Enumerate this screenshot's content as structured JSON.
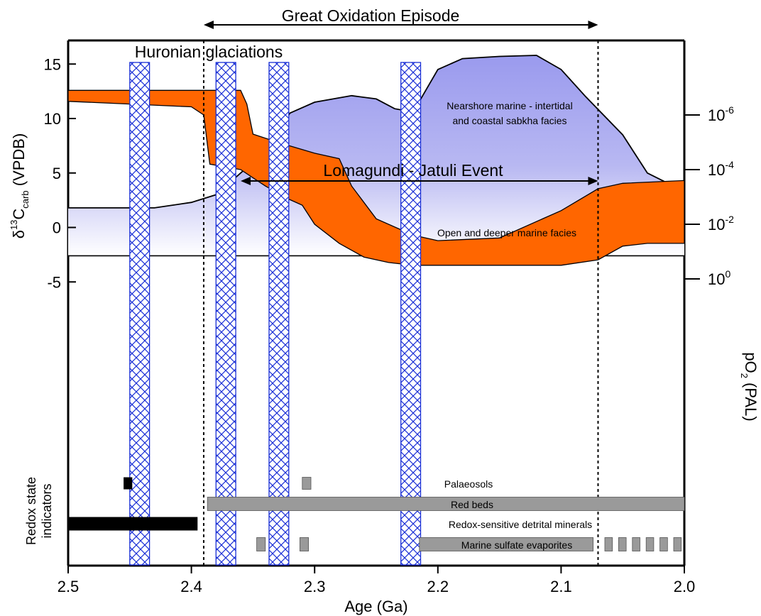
{
  "chart_data": {
    "type": "area",
    "x_axis": {
      "label": "Age (Ga)",
      "range": [
        2.5,
        2.0
      ],
      "reversed": true,
      "ticks": [
        2.5,
        2.4,
        2.3,
        2.2,
        2.1,
        2.0
      ],
      "tick_labels": [
        "2.5",
        "2.4",
        "2.3",
        "2.2",
        "2.1",
        "2.0"
      ]
    },
    "y_axis_left": {
      "label_main": "δ",
      "label_sup": "13",
      "label_c": "C",
      "label_sub": "carb",
      "label_tail": " (VPDB)",
      "range": [
        -7,
        17
      ],
      "ticks": [
        15,
        10,
        5,
        0,
        -5
      ],
      "tick_labels": [
        "15",
        "10",
        "5",
        "0",
        "-5"
      ]
    },
    "y_axis_right": {
      "label_main": "pO",
      "label_sub": "2",
      "label_tail": " (PAL)",
      "scale": "log",
      "tick_bases": [
        "10",
        "10",
        "10",
        "10"
      ],
      "tick_exponents": [
        "0",
        "-2",
        "-4",
        "-6"
      ],
      "tick_values_log10": [
        0,
        -2,
        -4,
        -6
      ]
    },
    "title": "Great Oxidation Episode",
    "goe_interval": [
      2.39,
      2.07
    ],
    "lomagundi": {
      "label": "Lomagundi - Jatuli Event",
      "interval": [
        2.36,
        2.07
      ]
    },
    "huronian": {
      "label": "Huronian glaciations",
      "bars": [
        [
          2.45,
          2.434
        ],
        [
          2.38,
          2.364
        ],
        [
          2.337,
          2.321
        ],
        [
          2.23,
          2.214
        ]
      ]
    },
    "carbon_isotope_upper_envelope": [
      [
        2.5,
        1.8
      ],
      [
        2.45,
        1.8
      ],
      [
        2.43,
        1.8
      ],
      [
        2.4,
        2.3
      ],
      [
        2.38,
        3.0
      ],
      [
        2.34,
        7.0
      ],
      [
        2.32,
        10.5
      ],
      [
        2.3,
        11.5
      ],
      [
        2.27,
        12.1
      ],
      [
        2.25,
        11.8
      ],
      [
        2.235,
        10.9
      ],
      [
        2.22,
        10.6
      ],
      [
        2.2,
        14.5
      ],
      [
        2.18,
        15.5
      ],
      [
        2.15,
        15.7
      ],
      [
        2.12,
        15.8
      ],
      [
        2.1,
        14.5
      ],
      [
        2.08,
        12.0
      ],
      [
        2.05,
        8.5
      ],
      [
        2.03,
        5.0
      ],
      [
        2.0,
        3.3
      ]
    ],
    "carbon_isotope_baseline": -2.6,
    "facies_labels": [
      "Nearshore marine - intertidal",
      "and coastal sabkha facies",
      "Open and deeper marine facies"
    ],
    "oxygen_band": {
      "color": "#ff6600",
      "upper_log10": [
        [
          2.5,
          -6.5
        ],
        [
          2.45,
          -6.4
        ],
        [
          2.4,
          -6.3
        ],
        [
          2.39,
          -6.0
        ],
        [
          2.385,
          -4.2
        ],
        [
          2.36,
          -4.0
        ],
        [
          2.34,
          -3.4
        ],
        [
          2.32,
          -2.9
        ],
        [
          2.31,
          -2.7
        ],
        [
          2.3,
          -2.0
        ],
        [
          2.28,
          -1.3
        ],
        [
          2.26,
          -0.8
        ],
        [
          2.24,
          -0.6
        ],
        [
          2.22,
          -0.5
        ],
        [
          2.18,
          -0.5
        ],
        [
          2.1,
          -0.5
        ],
        [
          2.07,
          -0.7
        ],
        [
          2.05,
          -1.2
        ],
        [
          2.03,
          -1.3
        ],
        [
          2.0,
          -1.3
        ]
      ],
      "lower_log10": [
        [
          2.5,
          -6.9
        ],
        [
          2.45,
          -6.9
        ],
        [
          2.4,
          -6.9
        ],
        [
          2.39,
          -6.9
        ],
        [
          2.36,
          -6.9
        ],
        [
          2.355,
          -6.4
        ],
        [
          2.35,
          -5.3
        ],
        [
          2.33,
          -5.0
        ],
        [
          2.3,
          -4.6
        ],
        [
          2.28,
          -4.4
        ],
        [
          2.27,
          -3.4
        ],
        [
          2.25,
          -2.2
        ],
        [
          2.22,
          -1.6
        ],
        [
          2.2,
          -1.4
        ],
        [
          2.15,
          -1.5
        ],
        [
          2.1,
          -2.5
        ],
        [
          2.07,
          -3.3
        ],
        [
          2.05,
          -3.5
        ],
        [
          2.0,
          -3.6
        ]
      ]
    },
    "redox_indicators": {
      "label_line1": "Redox state",
      "label_line2": "indicators",
      "rows": [
        {
          "name": "Palaeosols",
          "black": [
            [
              2.455,
              2.448
            ]
          ],
          "gray": [
            [
              2.31,
              2.303
            ]
          ],
          "dashed_gray": []
        },
        {
          "name": "Red beds",
          "black": [],
          "gray": [
            [
              2.387,
              2.0
            ]
          ],
          "dashed_gray": []
        },
        {
          "name": "Redox-sensitive detrital minerals",
          "black": [
            [
              2.5,
              2.395
            ]
          ],
          "gray": [],
          "dashed_gray": []
        },
        {
          "name": "Marine sulfate evaporites",
          "black": [],
          "gray": [
            [
              2.347,
              2.34
            ],
            [
              2.312,
              2.305
            ],
            [
              2.215,
              2.074
            ]
          ],
          "dashed_gray": [
            [
              2.067,
              2.0
            ]
          ]
        }
      ]
    },
    "colors": {
      "isotope_fill": "#9f9ff0",
      "oxygen_fill": "#ff6600",
      "glaciation_stroke": "#1a2fd6",
      "indicator_gray": "#9a9a9a",
      "indicator_black": "#000000"
    }
  }
}
